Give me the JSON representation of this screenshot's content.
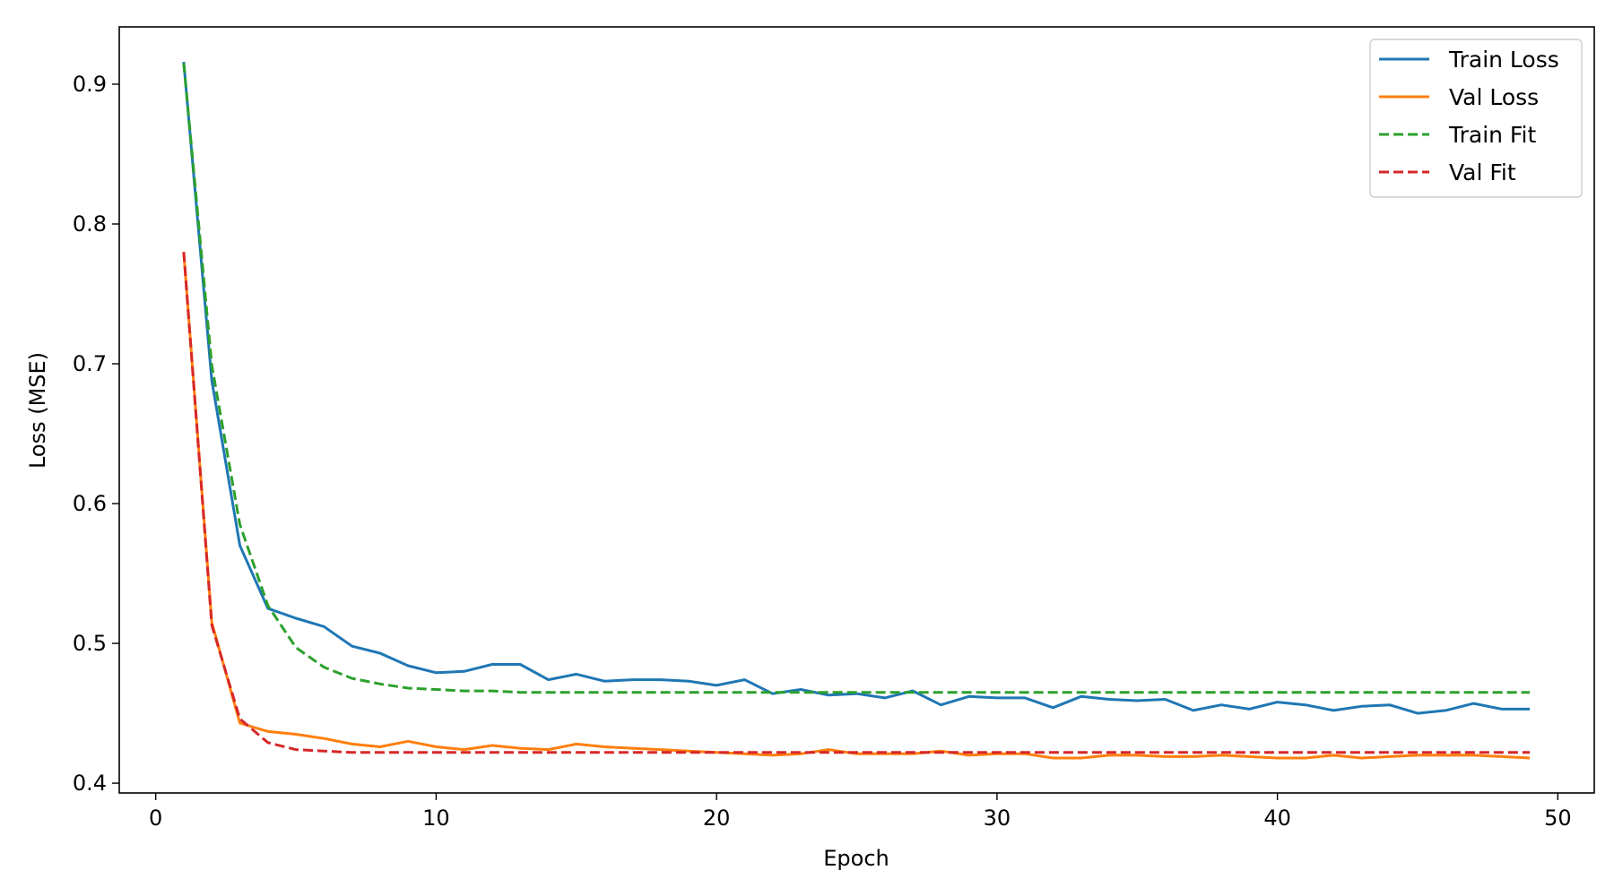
{
  "chart_data": {
    "type": "line",
    "title": "",
    "xlabel": "Epoch",
    "ylabel": "Loss (MSE)",
    "xlim": [
      -1.3,
      51.3
    ],
    "ylim": [
      0.393,
      0.941
    ],
    "xticks": [
      0,
      10,
      20,
      30,
      40,
      50
    ],
    "yticks": [
      0.4,
      0.5,
      0.6,
      0.7,
      0.8,
      0.9
    ],
    "xtick_labels": [
      "0",
      "10",
      "20",
      "30",
      "40",
      "50"
    ],
    "ytick_labels": [
      "0.4",
      "0.5",
      "0.6",
      "0.7",
      "0.8",
      "0.9"
    ],
    "grid": false,
    "legend_position": "top-right",
    "x": [
      1,
      2,
      3,
      4,
      5,
      6,
      7,
      8,
      9,
      10,
      11,
      12,
      13,
      14,
      15,
      16,
      17,
      18,
      19,
      20,
      21,
      22,
      23,
      24,
      25,
      26,
      27,
      28,
      29,
      30,
      31,
      32,
      33,
      34,
      35,
      36,
      37,
      38,
      39,
      40,
      41,
      42,
      43,
      44,
      45,
      46,
      47,
      48,
      49
    ],
    "series": [
      {
        "name": "Train Loss",
        "color": "#1f77b4",
        "style": "solid",
        "values": [
          0.916,
          0.688,
          0.57,
          0.525,
          0.518,
          0.512,
          0.498,
          0.493,
          0.484,
          0.479,
          0.48,
          0.485,
          0.485,
          0.474,
          0.478,
          0.473,
          0.474,
          0.474,
          0.473,
          0.47,
          0.474,
          0.464,
          0.467,
          0.463,
          0.464,
          0.461,
          0.466,
          0.456,
          0.462,
          0.461,
          0.461,
          0.454,
          0.462,
          0.46,
          0.459,
          0.46,
          0.452,
          0.456,
          0.453,
          0.458,
          0.456,
          0.452,
          0.455,
          0.456,
          0.45,
          0.452,
          0.457,
          0.453,
          0.453
        ]
      },
      {
        "name": "Val Loss",
        "color": "#ff7f0e",
        "style": "solid",
        "values": [
          0.78,
          0.515,
          0.443,
          0.437,
          0.435,
          0.432,
          0.428,
          0.426,
          0.43,
          0.426,
          0.424,
          0.427,
          0.425,
          0.424,
          0.428,
          0.426,
          0.425,
          0.424,
          0.423,
          0.422,
          0.421,
          0.42,
          0.421,
          0.424,
          0.421,
          0.421,
          0.421,
          0.423,
          0.42,
          0.421,
          0.421,
          0.418,
          0.418,
          0.42,
          0.42,
          0.419,
          0.419,
          0.42,
          0.419,
          0.418,
          0.418,
          0.42,
          0.418,
          0.419,
          0.42,
          0.42,
          0.42,
          0.419,
          0.418
        ]
      },
      {
        "name": "Train Fit",
        "color": "#2ca02c",
        "style": "dashed",
        "values": [
          0.915,
          0.699,
          0.585,
          0.527,
          0.497,
          0.483,
          0.475,
          0.471,
          0.468,
          0.467,
          0.466,
          0.466,
          0.465,
          0.465,
          0.465,
          0.465,
          0.465,
          0.465,
          0.465,
          0.465,
          0.465,
          0.465,
          0.465,
          0.465,
          0.465,
          0.465,
          0.465,
          0.465,
          0.465,
          0.465,
          0.465,
          0.465,
          0.465,
          0.465,
          0.465,
          0.465,
          0.465,
          0.465,
          0.465,
          0.465,
          0.465,
          0.465,
          0.465,
          0.465,
          0.465,
          0.465,
          0.465,
          0.465,
          0.465
        ]
      },
      {
        "name": "Val Fit",
        "color": "#d62728",
        "style": "dashed",
        "values": [
          0.78,
          0.513,
          0.446,
          0.429,
          0.424,
          0.423,
          0.422,
          0.422,
          0.422,
          0.422,
          0.422,
          0.422,
          0.422,
          0.422,
          0.422,
          0.422,
          0.422,
          0.422,
          0.422,
          0.422,
          0.422,
          0.422,
          0.422,
          0.422,
          0.422,
          0.422,
          0.422,
          0.422,
          0.422,
          0.422,
          0.422,
          0.422,
          0.422,
          0.422,
          0.422,
          0.422,
          0.422,
          0.422,
          0.422,
          0.422,
          0.422,
          0.422,
          0.422,
          0.422,
          0.422,
          0.422,
          0.422,
          0.422,
          0.422
        ]
      }
    ]
  }
}
